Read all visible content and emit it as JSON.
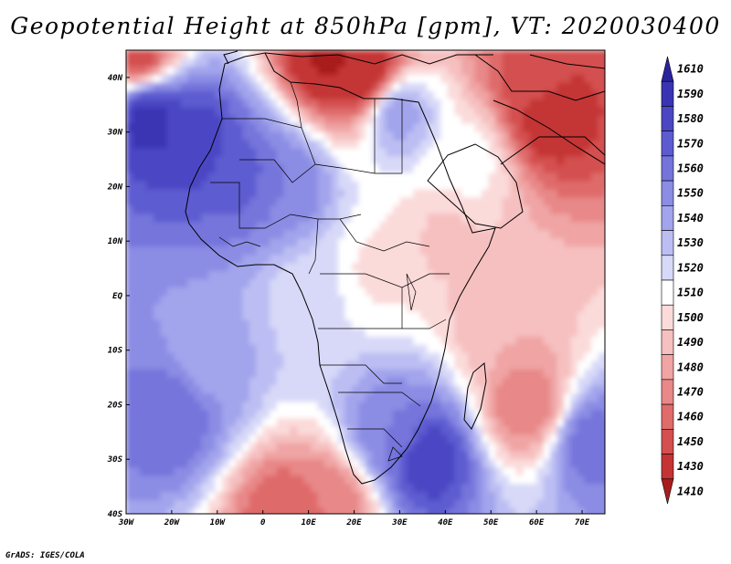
{
  "title": "Geopotential Height at 850hPa [gpm], VT: 2020030400",
  "credit": "GrADS: IGES/COLA",
  "map": {
    "lon_range": [
      -30,
      75
    ],
    "lat_range": [
      -40,
      45
    ],
    "lat_ticks": [
      {
        "value": 40,
        "label": "40N"
      },
      {
        "value": 30,
        "label": "30N"
      },
      {
        "value": 20,
        "label": "20N"
      },
      {
        "value": 10,
        "label": "10N"
      },
      {
        "value": 0,
        "label": "EQ"
      },
      {
        "value": -10,
        "label": "10S"
      },
      {
        "value": -20,
        "label": "20S"
      },
      {
        "value": -30,
        "label": "30S"
      },
      {
        "value": -40,
        "label": "40S"
      }
    ],
    "lon_ticks": [
      {
        "value": -30,
        "label": "30W"
      },
      {
        "value": -20,
        "label": "20W"
      },
      {
        "value": -10,
        "label": "10W"
      },
      {
        "value": 0,
        "label": "0"
      },
      {
        "value": 10,
        "label": "10E"
      },
      {
        "value": 20,
        "label": "20E"
      },
      {
        "value": 30,
        "label": "30E"
      },
      {
        "value": 40,
        "label": "40E"
      },
      {
        "value": 50,
        "label": "50E"
      },
      {
        "value": 60,
        "label": "60E"
      },
      {
        "value": 70,
        "label": "70E"
      }
    ]
  },
  "legend": {
    "levels": [
      {
        "label": "1610",
        "color": "#2a239e"
      },
      {
        "label": "1590",
        "color": "#3a34b4"
      },
      {
        "label": "1580",
        "color": "#4b47c4"
      },
      {
        "label": "1570",
        "color": "#5d5bd0"
      },
      {
        "label": "1560",
        "color": "#7474db"
      },
      {
        "label": "1550",
        "color": "#8b8ce4"
      },
      {
        "label": "1540",
        "color": "#a2a4ec"
      },
      {
        "label": "1530",
        "color": "#bcbef3"
      },
      {
        "label": "1520",
        "color": "#d8d9f8"
      },
      {
        "label": "1510",
        "color": "#ffffff"
      },
      {
        "label": "1500",
        "color": "#fbdada"
      },
      {
        "label": "1490",
        "color": "#f6c0c0"
      },
      {
        "label": "1480",
        "color": "#f0a4a4"
      },
      {
        "label": "1470",
        "color": "#e88888"
      },
      {
        "label": "1460",
        "color": "#df6b6b"
      },
      {
        "label": "1450",
        "color": "#d44f4f"
      },
      {
        "label": "1430",
        "color": "#c43434"
      },
      {
        "label": "1410",
        "color": "#a81e1e"
      }
    ]
  },
  "field_centers": [
    {
      "lon": -25,
      "lat": 32,
      "value": 1595
    },
    {
      "lon": -15,
      "lat": 28,
      "value": 1590
    },
    {
      "lon": -5,
      "lat": 22,
      "value": 1575
    },
    {
      "lon": 5,
      "lat": 20,
      "value": 1560
    },
    {
      "lon": 30,
      "lat": 33,
      "value": 1545
    },
    {
      "lon": 22,
      "lat": 41,
      "value": 1435
    },
    {
      "lon": 15,
      "lat": 44,
      "value": 1425
    },
    {
      "lon": -28,
      "lat": 45,
      "value": 1450
    },
    {
      "lon": 63,
      "lat": 33,
      "value": 1440
    },
    {
      "lon": 60,
      "lat": 40,
      "value": 1455
    },
    {
      "lon": -20,
      "lat": -22,
      "value": 1570
    },
    {
      "lon": -12,
      "lat": -12,
      "value": 1545
    },
    {
      "lon": 36,
      "lat": -30,
      "value": 1590
    },
    {
      "lon": 28,
      "lat": -25,
      "value": 1560
    },
    {
      "lon": 72,
      "lat": -27,
      "value": 1565
    },
    {
      "lon": 58,
      "lat": -20,
      "value": 1470
    },
    {
      "lon": 52,
      "lat": -5,
      "value": 1490
    },
    {
      "lon": 5,
      "lat": -40,
      "value": 1460
    },
    {
      "lon": 15,
      "lat": -38,
      "value": 1470
    },
    {
      "lon": 25,
      "lat": 5,
      "value": 1508
    },
    {
      "lon": 40,
      "lat": 10,
      "value": 1498
    },
    {
      "lon": 10,
      "lat": 0,
      "value": 1525
    },
    {
      "lon": 45,
      "lat": 25,
      "value": 1515
    }
  ]
}
